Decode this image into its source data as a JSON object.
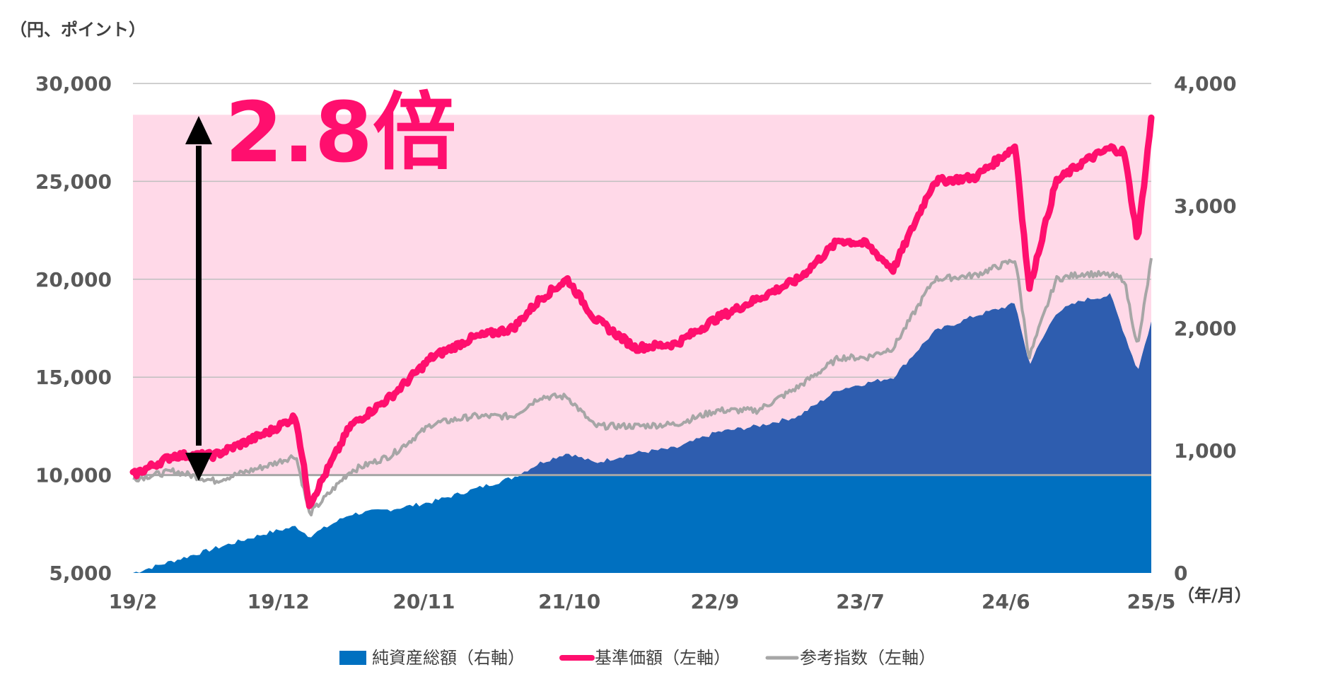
{
  "chart_data": {
    "type": "line",
    "title": "",
    "y_unit_label": "（円、ポイント）",
    "x_unit_label": "（年/月）",
    "annotation": "2.8倍",
    "x_tick_labels": [
      "19/2",
      "19/12",
      "20/11",
      "21/10",
      "22/9",
      "23/7",
      "24/6",
      "25/5"
    ],
    "y_left": {
      "ticks": [
        "5,000",
        "10,000",
        "15,000",
        "20,000",
        "25,000",
        "30,000"
      ],
      "range": [
        5000,
        30000
      ]
    },
    "y_right": {
      "ticks": [
        "0",
        "1,000",
        "2,000",
        "3,000",
        "4,000"
      ],
      "range": [
        0,
        4000
      ]
    },
    "baseline_value": 10000,
    "highlight_top_value": 28400,
    "x_range": [
      "2019-02",
      "2025-05"
    ],
    "legend": [
      {
        "label": "純資産総額（右軸）",
        "color": "#0070c0"
      },
      {
        "label": "基準価額（左軸）",
        "color": "#ff0f6e"
      },
      {
        "label": "参考指数（左軸）",
        "color": "#a6a6a6"
      }
    ],
    "colors": {
      "nav": "#ff0f6e",
      "ref": "#a6a6a6",
      "assets": "#0070c0",
      "assets_above_baseline": "#2e5daf",
      "highlight": "#ffd9e8",
      "gridline": "#bfbfbf"
    },
    "series": [
      {
        "name": "基準価額（左軸）",
        "axis": "left",
        "x": [
          "2019-02",
          "2019-05",
          "2019-08",
          "2019-12",
          "2020-02",
          "2020-03",
          "2020-06",
          "2020-09",
          "2020-12",
          "2021-03",
          "2021-06",
          "2021-08",
          "2021-10",
          "2021-12",
          "2022-03",
          "2022-06",
          "2022-09",
          "2022-12",
          "2023-03",
          "2023-06",
          "2023-08",
          "2023-10",
          "2024-01",
          "2024-04",
          "2024-07",
          "2024-08",
          "2024-10",
          "2024-12",
          "2025-02",
          "2025-03",
          "2025-04",
          "2025-05"
        ],
        "values": [
          10000,
          11000,
          11000,
          12200,
          13000,
          8500,
          12500,
          14000,
          16000,
          17000,
          17500,
          19000,
          20000,
          18000,
          16500,
          16700,
          18000,
          19000,
          20000,
          22000,
          21800,
          20500,
          25000,
          25200,
          26800,
          19500,
          25000,
          26000,
          26700,
          26500,
          22000,
          28200
        ]
      },
      {
        "name": "参考指数（左軸）",
        "axis": "left",
        "x": [
          "2019-02",
          "2019-05",
          "2019-08",
          "2019-12",
          "2020-02",
          "2020-03",
          "2020-06",
          "2020-09",
          "2020-12",
          "2021-03",
          "2021-06",
          "2021-08",
          "2021-10",
          "2021-12",
          "2022-03",
          "2022-06",
          "2022-09",
          "2022-12",
          "2023-03",
          "2023-06",
          "2023-08",
          "2023-10",
          "2024-01",
          "2024-04",
          "2024-07",
          "2024-08",
          "2024-10",
          "2024-12",
          "2025-02",
          "2025-03",
          "2025-04",
          "2025-05"
        ],
        "values": [
          9800,
          10200,
          9700,
          10500,
          11000,
          8000,
          10200,
          11000,
          12600,
          13000,
          13000,
          14000,
          14000,
          12500,
          12500,
          12600,
          13300,
          13300,
          14500,
          16000,
          16000,
          16500,
          20000,
          20200,
          21000,
          16000,
          20000,
          20300,
          20200,
          20000,
          16500,
          21000
        ]
      },
      {
        "name": "純資産総額（右軸）",
        "axis": "right",
        "x": [
          "2019-02",
          "2019-05",
          "2019-08",
          "2019-12",
          "2020-02",
          "2020-03",
          "2020-06",
          "2020-09",
          "2020-12",
          "2021-03",
          "2021-06",
          "2021-08",
          "2021-10",
          "2021-12",
          "2022-03",
          "2022-06",
          "2022-09",
          "2022-12",
          "2023-03",
          "2023-06",
          "2023-08",
          "2023-10",
          "2024-01",
          "2024-04",
          "2024-07",
          "2024-08",
          "2024-10",
          "2024-12",
          "2025-02",
          "2025-03",
          "2025-04",
          "2025-05"
        ],
        "values": [
          0,
          100,
          200,
          330,
          380,
          300,
          480,
          520,
          580,
          680,
          780,
          900,
          980,
          900,
          980,
          1020,
          1150,
          1200,
          1280,
          1500,
          1550,
          1600,
          1970,
          2100,
          2200,
          1700,
          2130,
          2230,
          2270,
          1960,
          1650,
          2050
        ]
      }
    ]
  }
}
